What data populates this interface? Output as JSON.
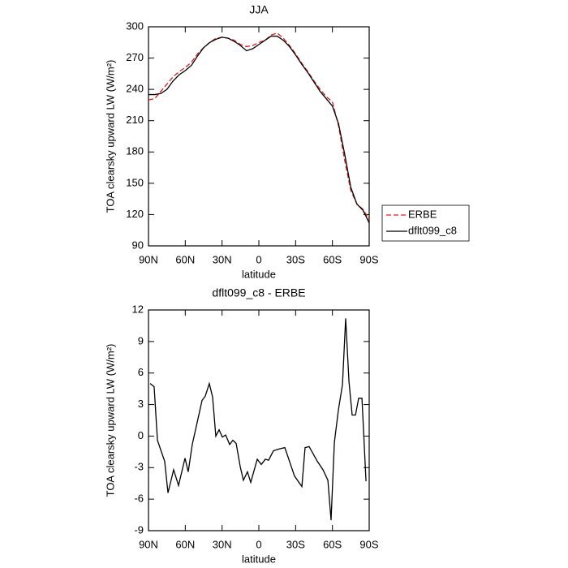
{
  "chart_data": [
    {
      "type": "line",
      "title": "JJA",
      "x_label": "latitude",
      "y_label": "TOA clearsky upward LW (W/m²)",
      "x": [
        90,
        85,
        80,
        75,
        70,
        65,
        60,
        55,
        50,
        45,
        40,
        35,
        30,
        25,
        20,
        15,
        10,
        5,
        0,
        -5,
        -10,
        -15,
        -20,
        -25,
        -30,
        -35,
        -40,
        -45,
        -50,
        -55,
        -60,
        -65,
        -70,
        -75,
        -80,
        -85,
        -90
      ],
      "series": [
        {
          "name": "ERBE",
          "color": "#e41a1c",
          "line_style": "dashed",
          "values": [
            230,
            231,
            238,
            245,
            252,
            257,
            261,
            266,
            274,
            280,
            285,
            289,
            290,
            289,
            287,
            283,
            281,
            282,
            285,
            287,
            292,
            294,
            289,
            282,
            274,
            265,
            257,
            248,
            240,
            233,
            228,
            205,
            172,
            143,
            130,
            125,
            115
          ]
        },
        {
          "name": "dflt099_c8",
          "color": "#000000",
          "line_style": "solid",
          "values": [
            235,
            235,
            236,
            240,
            248,
            254,
            258,
            263,
            272,
            280,
            285,
            288,
            290,
            289,
            286,
            282,
            277,
            279,
            283,
            287,
            291,
            291,
            287,
            281,
            273,
            264,
            256,
            247,
            238,
            231,
            224,
            207,
            178,
            146,
            130,
            124,
            112
          ]
        }
      ],
      "xlim": [
        90,
        -90
      ],
      "xticks": [
        {
          "value": 90,
          "label": "90N"
        },
        {
          "value": 60,
          "label": "60N"
        },
        {
          "value": 30,
          "label": "30N"
        },
        0,
        {
          "value": -30,
          "label": "30S"
        },
        {
          "value": -60,
          "label": "60S"
        },
        {
          "value": -90,
          "label": "90S"
        }
      ],
      "ylim": [
        90,
        300
      ],
      "yticks": [
        90,
        120,
        150,
        180,
        210,
        240,
        270,
        300
      ],
      "legend": "right"
    },
    {
      "type": "line",
      "title": "dflt099_c8 - ERBE",
      "x_label": "latitude",
      "y_label": "TOA clearsky upward LW (W/m²)",
      "x": [
        88.7,
        85.4,
        82.7,
        76.8,
        74.1,
        69.5,
        65.5,
        60.2,
        57.6,
        54.3,
        50.3,
        46.3,
        43.7,
        40.4,
        37.7,
        35.1,
        32.4,
        29.8,
        27.1,
        23.8,
        21.2,
        18.5,
        15.2,
        12.6,
        9.3,
        6.6,
        1.3,
        -2,
        -5.3,
        -7.9,
        -11.9,
        -17.2,
        -21.2,
        -29.1,
        -35.1,
        -37.7,
        -41,
        -47.7,
        -52.3,
        -56.3,
        -58.9,
        -61.6,
        -64.9,
        -68.2,
        -70.8,
        -73.5,
        -76.1,
        -78.8,
        -81.4,
        -84.1,
        -87.4
      ],
      "values": [
        5,
        4.7,
        -0.4,
        -2.4,
        -5.4,
        -3.2,
        -4.7,
        -2.1,
        -3.4,
        -0.8,
        1.3,
        3.4,
        3.8,
        5,
        3.7,
        0,
        0.6,
        -0.1,
        0.1,
        -0.8,
        -0.4,
        -0.7,
        -2.9,
        -4.2,
        -3.4,
        -4.4,
        -2.2,
        -2.7,
        -2.2,
        -2.3,
        -1.4,
        -1.2,
        -1.1,
        -3.8,
        -4.8,
        -1.1,
        -1,
        -2.4,
        -3.2,
        -4.2,
        -8,
        -0.6,
        2.5,
        4.9,
        11.2,
        5.2,
        2,
        2,
        3.6,
        3.6,
        -4.3
      ],
      "color": "#000000",
      "xlim": [
        90,
        -90
      ],
      "xticks": [
        {
          "value": 90,
          "label": "90N"
        },
        {
          "value": 60,
          "label": "60N"
        },
        {
          "value": 30,
          "label": "30N"
        },
        0,
        {
          "value": -30,
          "label": "30S"
        },
        {
          "value": -60,
          "label": "60S"
        },
        {
          "value": -90,
          "label": "90S"
        }
      ],
      "ylim": [
        -9,
        12
      ],
      "yticks": [
        -9,
        -6,
        -3,
        0,
        3,
        6,
        9,
        12
      ]
    }
  ]
}
